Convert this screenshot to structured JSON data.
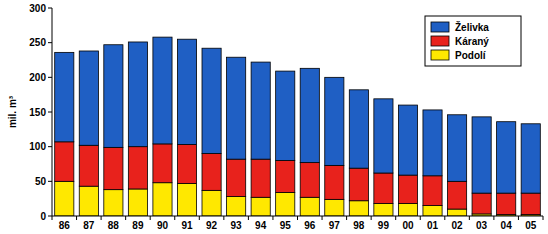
{
  "chart_data": {
    "type": "bar",
    "stacked": true,
    "grid": false,
    "legend": "top-right",
    "y_label": "mil. m³",
    "categories": [
      "86",
      "87",
      "88",
      "89",
      "90",
      "91",
      "92",
      "93",
      "94",
      "95",
      "96",
      "97",
      "98",
      "99",
      "00",
      "01",
      "02",
      "03",
      "04",
      "05"
    ],
    "ylim": [
      0,
      300
    ],
    "yticks": [
      0,
      50,
      100,
      150,
      200,
      250,
      300
    ],
    "series": [
      {
        "name": "Podolí",
        "color": "#ffe800",
        "values": [
          50,
          43,
          38,
          39,
          48,
          47,
          37,
          28,
          27,
          34,
          27,
          24,
          22,
          18,
          18,
          15,
          10,
          3,
          2,
          2
        ]
      },
      {
        "name": "Káraný",
        "color": "#e8221c",
        "values": [
          57,
          59,
          61,
          61,
          56,
          56,
          53,
          54,
          55,
          46,
          50,
          49,
          47,
          44,
          41,
          43,
          40,
          30,
          31,
          31
        ]
      },
      {
        "name": "Želivka",
        "color": "#1f5fc4",
        "values": [
          129,
          136,
          148,
          151,
          154,
          152,
          152,
          147,
          140,
          129,
          136,
          127,
          113,
          107,
          101,
          95,
          96,
          110,
          103,
          100
        ]
      }
    ]
  }
}
